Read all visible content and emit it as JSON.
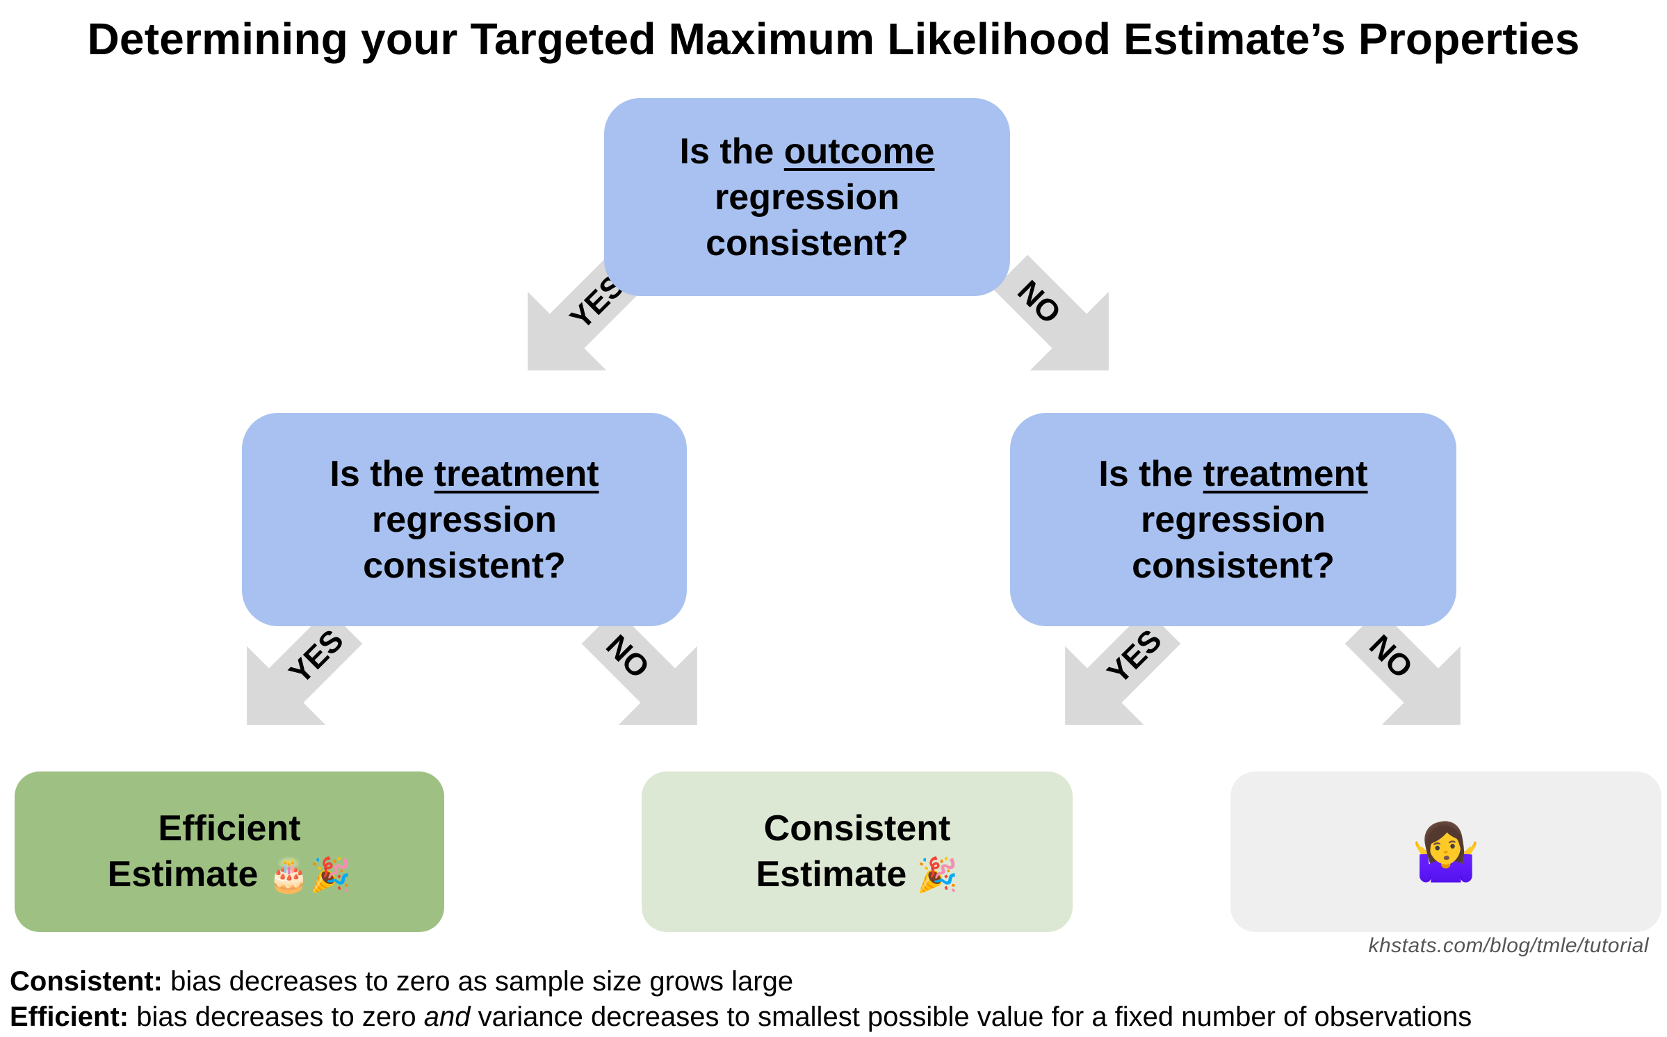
{
  "title": "Determining your Targeted Maximum Likelihood Estimate’s Properties",
  "root": {
    "pre": "Is the ",
    "key": "outcome",
    "line2": "regression",
    "line3": "consistent?"
  },
  "left_q": {
    "pre": "Is the ",
    "key": "treatment",
    "line2": "regression",
    "line3": "consistent?"
  },
  "right_q": {
    "pre": "Is the ",
    "key": "treatment",
    "line2": "regression",
    "line3": "consistent?"
  },
  "results": {
    "efficient": {
      "line1": "Efficient",
      "line2": "Estimate",
      "emoji": "🎂🎉"
    },
    "consistent": {
      "line1": "Consistent",
      "line2": "Estimate",
      "emoji": "🎉"
    },
    "unknown": {
      "emoji": "🤷‍♀️"
    }
  },
  "arrow_labels": {
    "yes": "YES",
    "no": "NO"
  },
  "credit": "khstats.com/blog/tmle/tutorial",
  "definitions": {
    "consistent_term": "Consistent:",
    "consistent_text": " bias decreases to zero as sample size grows large",
    "efficient_term": "Efficient:",
    "efficient_text_a": " bias decreases to zero ",
    "efficient_text_em": "and",
    "efficient_text_b": " variance decreases to smallest possible value for a fixed number of observations"
  },
  "colors": {
    "question_box": "#a9c1f0",
    "efficient_box": "#9ec183",
    "consistent_box": "#dde8d4",
    "unknown_box": "#efefef",
    "arrow": "#d9d9d9"
  }
}
